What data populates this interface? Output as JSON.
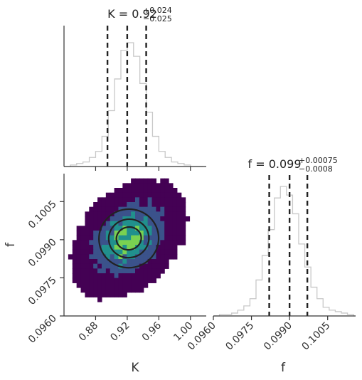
{
  "chart_data": [
    {
      "type": "histogram",
      "panel": "marginal-K",
      "param": "K",
      "title": {
        "lhs": "K = 0.92",
        "plus": "+0.024",
        "minus": "−0.025"
      },
      "quantiles": [
        0.895,
        0.92,
        0.944
      ],
      "xlim": [
        0.84,
        1.02
      ],
      "xticks": [
        0.88,
        0.92,
        0.96,
        1.0
      ],
      "xtick_labels": [
        "0.88",
        "0.92",
        "0.96",
        "1.00"
      ],
      "bin_edges": [
        0.84,
        0.848,
        0.856,
        0.864,
        0.872,
        0.88,
        0.888,
        0.896,
        0.904,
        0.912,
        0.92,
        0.928,
        0.936,
        0.944,
        0.952,
        0.96,
        0.968,
        0.976,
        0.984,
        0.992,
        1.0,
        1.008,
        1.016
      ],
      "counts": [
        0,
        1,
        2,
        3,
        6,
        10,
        20,
        37,
        58,
        77,
        82,
        73,
        55,
        36,
        20,
        10,
        6,
        3,
        2,
        1,
        0,
        0
      ],
      "color": "#c8c8c8"
    },
    {
      "type": "histogram",
      "panel": "marginal-f",
      "param": "f",
      "title": {
        "lhs": "f = 0.099",
        "plus": "+0.00075",
        "minus": "−0.0008"
      },
      "quantiles": [
        0.0982,
        0.099,
        0.0997
      ],
      "xlim": [
        0.096,
        0.1016
      ],
      "xticks": [
        0.096,
        0.0975,
        0.099,
        0.1005
      ],
      "xtick_labels": [
        "0.0960",
        "0.0975",
        "0.0990",
        "0.1005"
      ],
      "bin_edges": [
        0.096,
        0.09624,
        0.09648,
        0.09672,
        0.09696,
        0.0972,
        0.09744,
        0.09768,
        0.09792,
        0.09816,
        0.0984,
        0.09864,
        0.09888,
        0.09912,
        0.09936,
        0.0996,
        0.09984,
        0.10008,
        0.10032,
        0.10056,
        0.1008,
        0.10104,
        0.10128,
        0.10152,
        0.1016
      ],
      "counts": [
        0,
        1,
        1,
        2,
        4,
        7,
        12,
        25,
        42,
        60,
        82,
        90,
        84,
        71,
        50,
        34,
        20,
        12,
        6,
        4,
        3,
        2,
        1,
        0
      ],
      "color": "#c8c8c8"
    },
    {
      "type": "heatmap",
      "panel": "joint-K-f",
      "xparam": "K",
      "yparam": "f",
      "xlabel": "K",
      "ylabel": "f",
      "xlim": [
        0.84,
        1.02
      ],
      "ylim": [
        0.096,
        0.1016
      ],
      "xticks": [
        0.88,
        0.92,
        0.96,
        1.0
      ],
      "xtick_labels": [
        "0.88",
        "0.92",
        "0.96",
        "1.00"
      ],
      "yticks": [
        0.096,
        0.0975,
        0.099,
        0.1005
      ],
      "ytick_labels": [
        "0.0960",
        "0.0975",
        "0.0990",
        "0.1005"
      ],
      "center": [
        0.922,
        0.09905
      ],
      "sigma": [
        0.025,
        0.0008
      ],
      "grid": [
        34,
        30
      ],
      "density_levels": [
        0.05,
        0.32,
        0.62,
        0.9
      ],
      "level_colors": [
        "#440154",
        "#3b528b",
        "#21908d",
        "#7ad151"
      ],
      "contour_color": "#222222"
    }
  ]
}
